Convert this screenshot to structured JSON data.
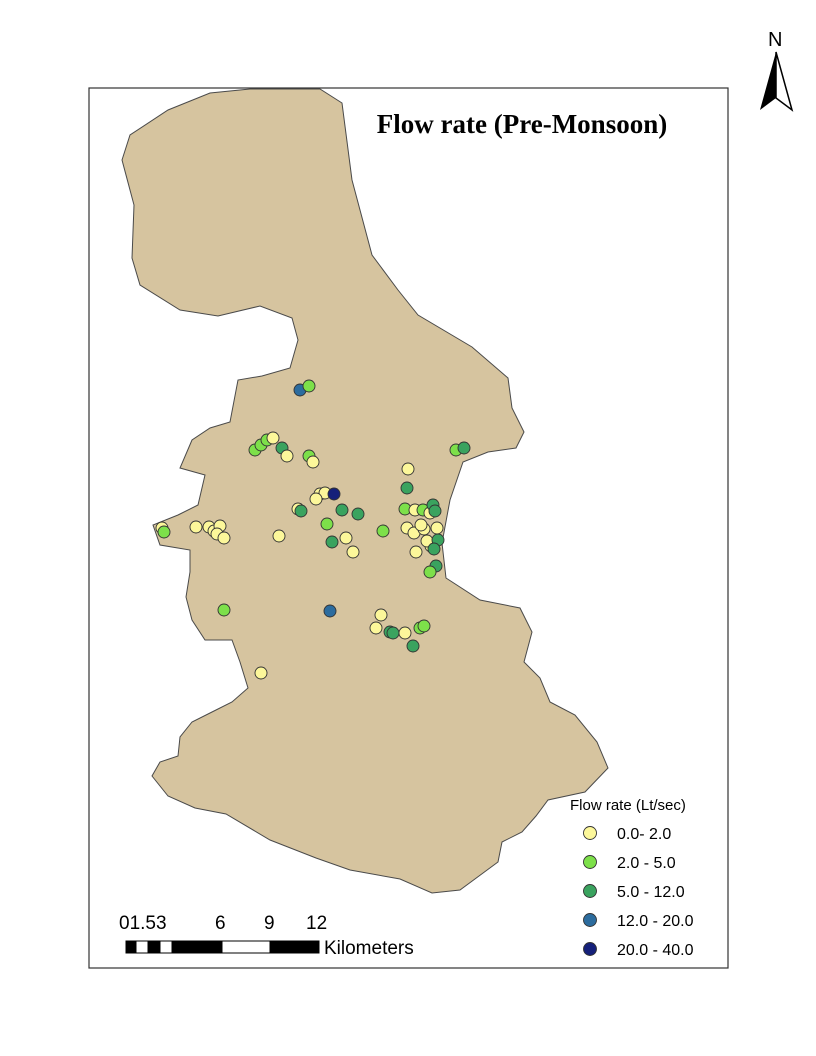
{
  "title": "Flow rate (Pre-Monsoon)",
  "north_label": "N",
  "colors": {
    "basin_fill": "#d6c49f",
    "basin_stroke": "#4a4a4a",
    "frame": "#333333"
  },
  "legend": {
    "title": "Flow rate (Lt/sec)",
    "items": [
      {
        "label": "0.0- 2.0",
        "color": "#fcf79a"
      },
      {
        "label": "2.0 - 5.0",
        "color": "#7de04a"
      },
      {
        "label": "5.0 - 12.0",
        "color": "#3aa35f"
      },
      {
        "label": "12.0 - 20.0",
        "color": "#2c6c9e"
      },
      {
        "label": "20.0 - 40.0",
        "color": "#15207a"
      }
    ]
  },
  "scale_bar": {
    "tick_labels": [
      "01.53",
      "6",
      "9",
      "12"
    ],
    "unit": "Kilometers"
  }
}
